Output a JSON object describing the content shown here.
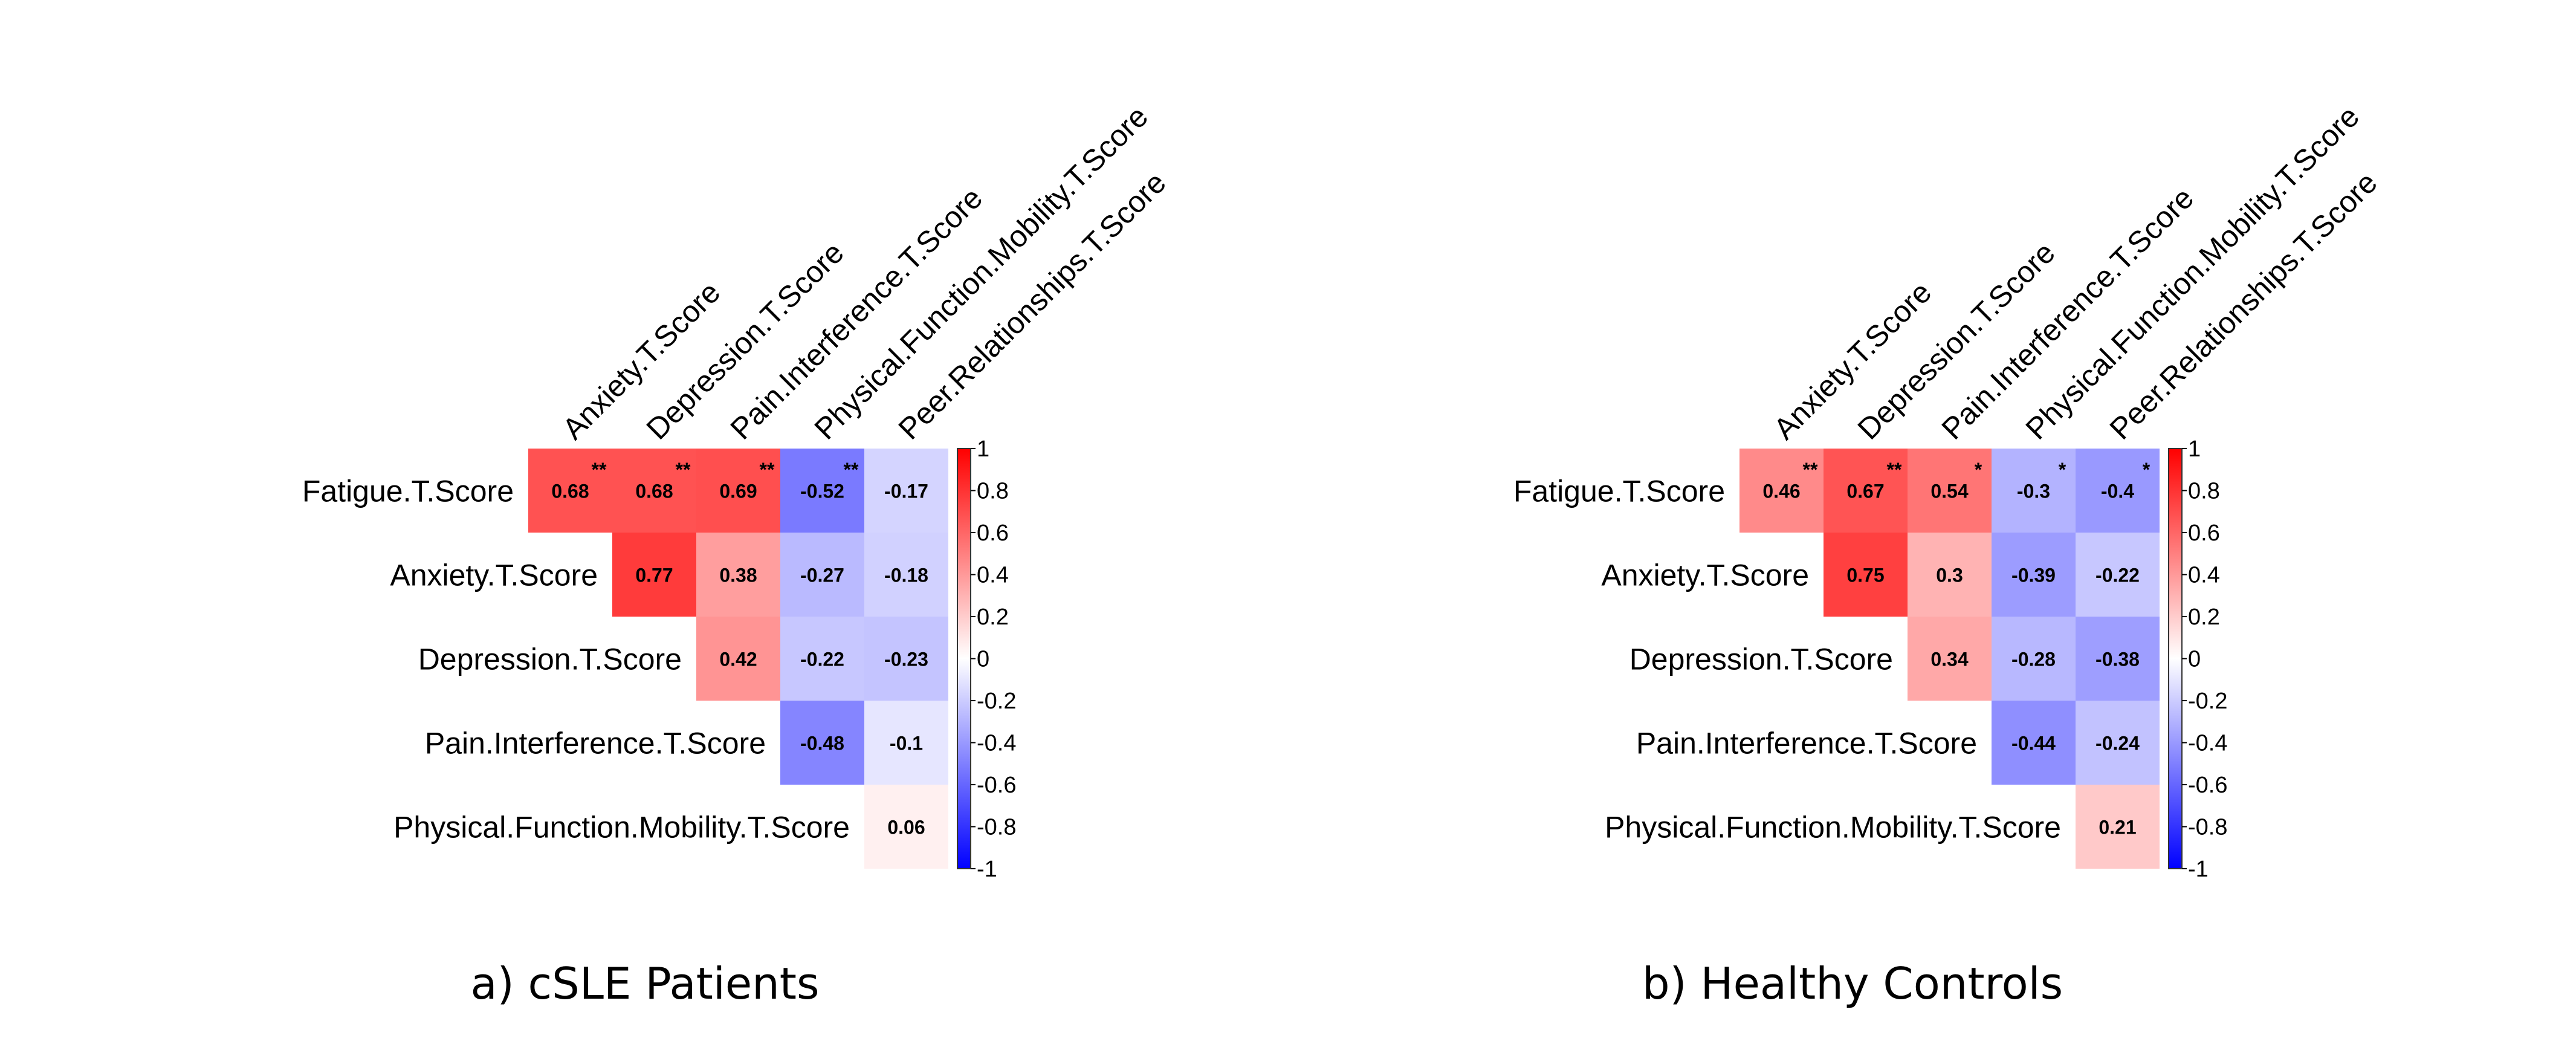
{
  "chart_data": [
    {
      "type": "heatmap",
      "title": "",
      "caption": "a) cSLE Patients",
      "row_labels": [
        "Fatigue.T.Score",
        "Anxiety.T.Score",
        "Depression.T.Score",
        "Pain.Interference.T.Score",
        "Physical.Function.Mobility.T.Score"
      ],
      "col_labels": [
        "Anxiety.T.Score",
        "Depression.T.Score",
        "Pain.Interference.T.Score",
        "Physical.Function.Mobility.T.Score",
        "Peer.Relationships.T.Score"
      ],
      "cells": [
        {
          "row": 0,
          "col": 0,
          "label": "0.68",
          "value": 0.68,
          "sig": "**"
        },
        {
          "row": 0,
          "col": 1,
          "label": "0.68",
          "value": 0.68,
          "sig": "**"
        },
        {
          "row": 0,
          "col": 2,
          "label": "0.69",
          "value": 0.69,
          "sig": "**"
        },
        {
          "row": 0,
          "col": 3,
          "label": "-0.52",
          "value": -0.52,
          "sig": "**"
        },
        {
          "row": 0,
          "col": 4,
          "label": "-0.17",
          "value": -0.17,
          "sig": ""
        },
        {
          "row": 1,
          "col": 1,
          "label": "0.77",
          "value": 0.77,
          "sig": ""
        },
        {
          "row": 1,
          "col": 2,
          "label": "0.38",
          "value": 0.38,
          "sig": ""
        },
        {
          "row": 1,
          "col": 3,
          "label": "-0.27",
          "value": -0.27,
          "sig": ""
        },
        {
          "row": 1,
          "col": 4,
          "label": "-0.18",
          "value": -0.18,
          "sig": ""
        },
        {
          "row": 2,
          "col": 2,
          "label": "0.42",
          "value": 0.42,
          "sig": ""
        },
        {
          "row": 2,
          "col": 3,
          "label": "-0.22",
          "value": -0.22,
          "sig": ""
        },
        {
          "row": 2,
          "col": 4,
          "label": "-0.23",
          "value": -0.23,
          "sig": ""
        },
        {
          "row": 3,
          "col": 3,
          "label": "-0.48",
          "value": -0.48,
          "sig": ""
        },
        {
          "row": 3,
          "col": 4,
          "label": "-0.1",
          "value": -0.1,
          "sig": ""
        },
        {
          "row": 4,
          "col": 4,
          "label": "0.06",
          "value": 0.06,
          "sig": ""
        }
      ],
      "colorbar": {
        "range": [
          -1,
          1
        ],
        "ticks": [
          "1",
          "0.8",
          "0.6",
          "0.4",
          "0.2",
          "0",
          "-0.2",
          "-0.4",
          "-0.6",
          "-0.8",
          "-1"
        ],
        "tick_values": [
          1,
          0.8,
          0.6,
          0.4,
          0.2,
          0,
          -0.2,
          -0.4,
          -0.6,
          -0.8,
          -1
        ],
        "colors": {
          "negative": "#0000ff",
          "zero": "#ffffff",
          "positive": "#ff0000"
        }
      }
    },
    {
      "type": "heatmap",
      "title": "",
      "caption": "b) Healthy Controls",
      "row_labels": [
        "Fatigue.T.Score",
        "Anxiety.T.Score",
        "Depression.T.Score",
        "Pain.Interference.T.Score",
        "Physical.Function.Mobility.T.Score"
      ],
      "col_labels": [
        "Anxiety.T.Score",
        "Depression.T.Score",
        "Pain.Interference.T.Score",
        "Physical.Function.Mobility.T.Score",
        "Peer.Relationships.T.Score"
      ],
      "cells": [
        {
          "row": 0,
          "col": 0,
          "label": "0.46",
          "value": 0.46,
          "sig": "**"
        },
        {
          "row": 0,
          "col": 1,
          "label": "0.67",
          "value": 0.67,
          "sig": "**"
        },
        {
          "row": 0,
          "col": 2,
          "label": "0.54",
          "value": 0.54,
          "sig": "*"
        },
        {
          "row": 0,
          "col": 3,
          "label": "-0.3",
          "value": -0.3,
          "sig": "*"
        },
        {
          "row": 0,
          "col": 4,
          "label": "-0.4",
          "value": -0.4,
          "sig": "*"
        },
        {
          "row": 1,
          "col": 1,
          "label": "0.75",
          "value": 0.75,
          "sig": ""
        },
        {
          "row": 1,
          "col": 2,
          "label": "0.3",
          "value": 0.3,
          "sig": ""
        },
        {
          "row": 1,
          "col": 3,
          "label": "-0.39",
          "value": -0.39,
          "sig": ""
        },
        {
          "row": 1,
          "col": 4,
          "label": "-0.22",
          "value": -0.22,
          "sig": ""
        },
        {
          "row": 2,
          "col": 2,
          "label": "0.34",
          "value": 0.34,
          "sig": ""
        },
        {
          "row": 2,
          "col": 3,
          "label": "-0.28",
          "value": -0.28,
          "sig": ""
        },
        {
          "row": 2,
          "col": 4,
          "label": "-0.38",
          "value": -0.38,
          "sig": ""
        },
        {
          "row": 3,
          "col": 3,
          "label": "-0.44",
          "value": -0.44,
          "sig": ""
        },
        {
          "row": 3,
          "col": 4,
          "label": "-0.24",
          "value": -0.24,
          "sig": ""
        },
        {
          "row": 4,
          "col": 4,
          "label": "0.21",
          "value": 0.21,
          "sig": ""
        }
      ],
      "colorbar": {
        "range": [
          -1,
          1
        ],
        "ticks": [
          "1",
          "0.8",
          "0.6",
          "0.4",
          "0.2",
          "0",
          "-0.2",
          "-0.4",
          "-0.6",
          "-0.8",
          "-1"
        ],
        "tick_values": [
          1,
          0.8,
          0.6,
          0.4,
          0.2,
          0,
          -0.2,
          -0.4,
          -0.6,
          -0.8,
          -1
        ],
        "colors": {
          "negative": "#0000ff",
          "zero": "#ffffff",
          "positive": "#ff0000"
        }
      }
    }
  ]
}
